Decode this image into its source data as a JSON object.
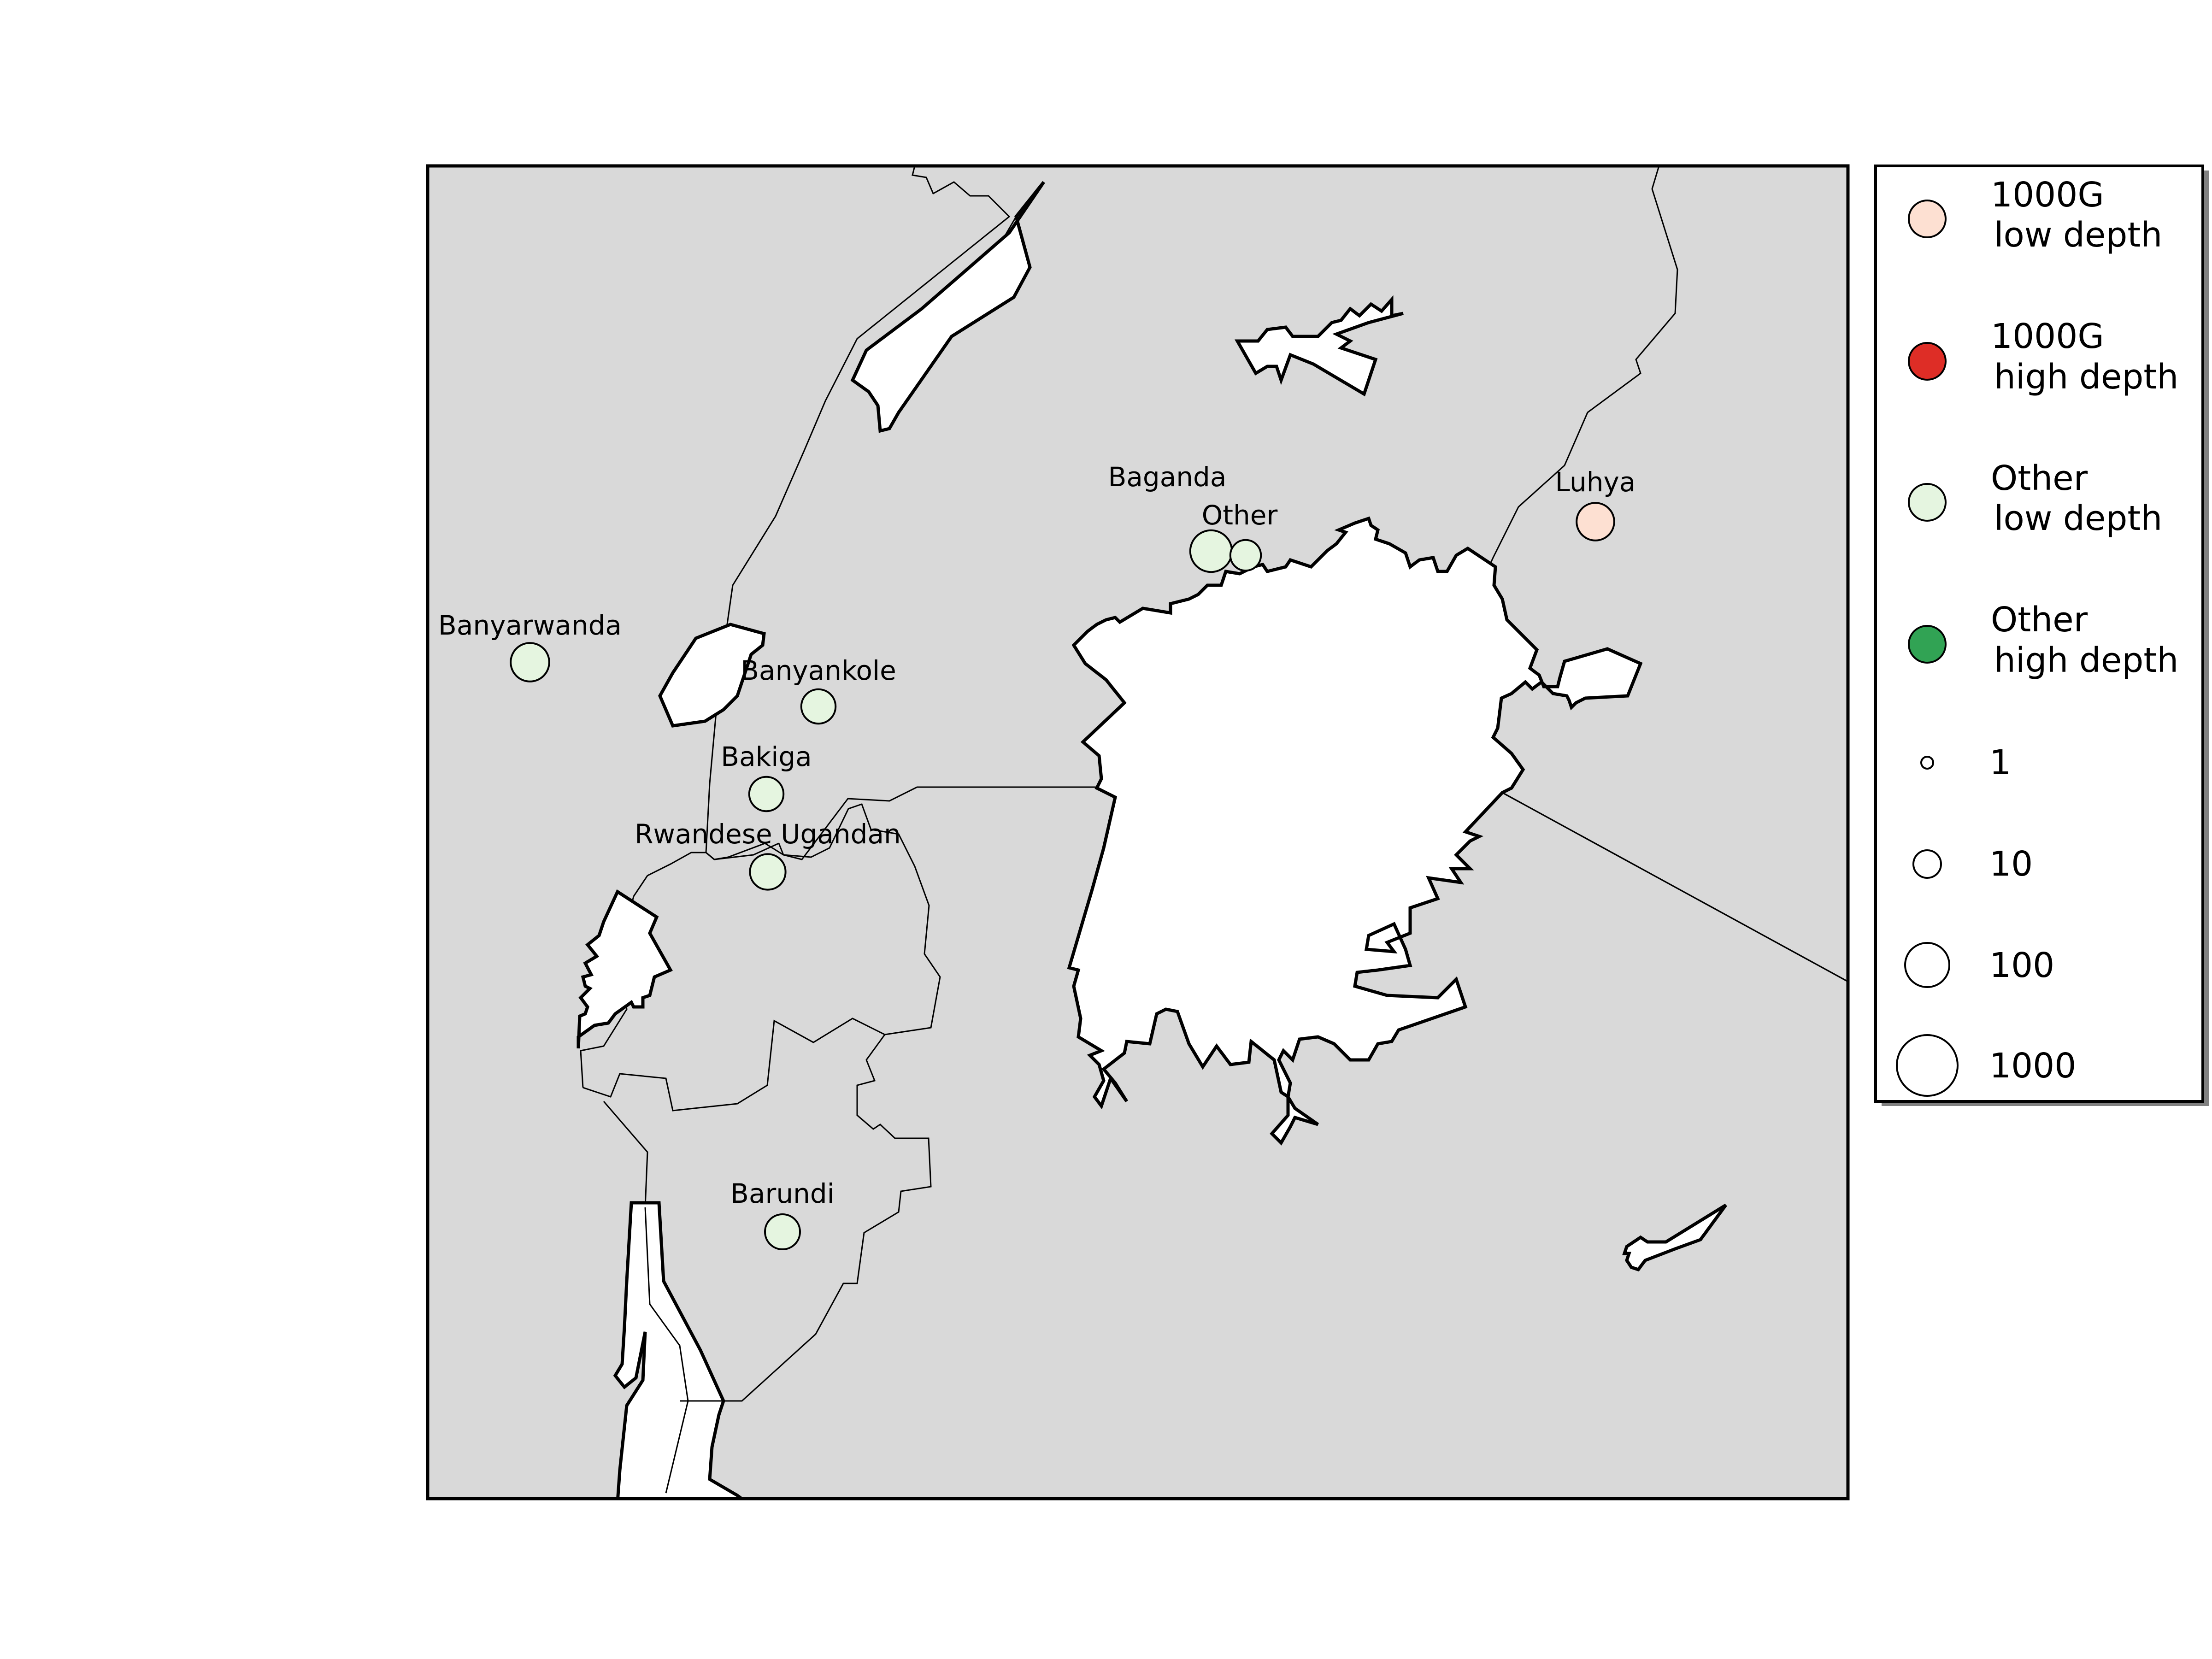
{
  "map": {
    "populations": [
      {
        "id": "baganda",
        "name": "Baganda",
        "category": "Other low depth",
        "sample_size": 70
      },
      {
        "id": "other",
        "name": "Other",
        "category": "Other low depth",
        "sample_size": 15
      },
      {
        "id": "luhya",
        "name": "Luhya",
        "category": "1000G low depth",
        "sample_size": 40
      },
      {
        "id": "banyarwanda",
        "name": "Banyarwanda",
        "category": "Other low depth",
        "sample_size": 45
      },
      {
        "id": "banyankole",
        "name": "Banyankole",
        "category": "Other low depth",
        "sample_size": 25
      },
      {
        "id": "bakiga",
        "name": "Bakiga",
        "category": "Other low depth",
        "sample_size": 25
      },
      {
        "id": "rwandese-ugandan",
        "name": "Rwandese Ugandan",
        "category": "Other low depth",
        "sample_size": 30
      },
      {
        "id": "barundi",
        "name": "Barundi",
        "category": "Other low depth",
        "sample_size": 28
      }
    ]
  },
  "legend": {
    "categories": [
      {
        "line1": "1000G",
        "line2": "low depth",
        "color": "#fde0d2"
      },
      {
        "line1": "1000G",
        "line2": "high depth",
        "color": "#de2d26"
      },
      {
        "line1": "Other",
        "line2": "low depth",
        "color": "#e5f5e0"
      },
      {
        "line1": "Other",
        "line2": "high depth",
        "color": "#31a354"
      }
    ],
    "sizes": [
      "1",
      "10",
      "100",
      "1000"
    ]
  },
  "colors": {
    "land": "#d9d9d9",
    "water": "#ffffff",
    "outline": "#000000"
  }
}
